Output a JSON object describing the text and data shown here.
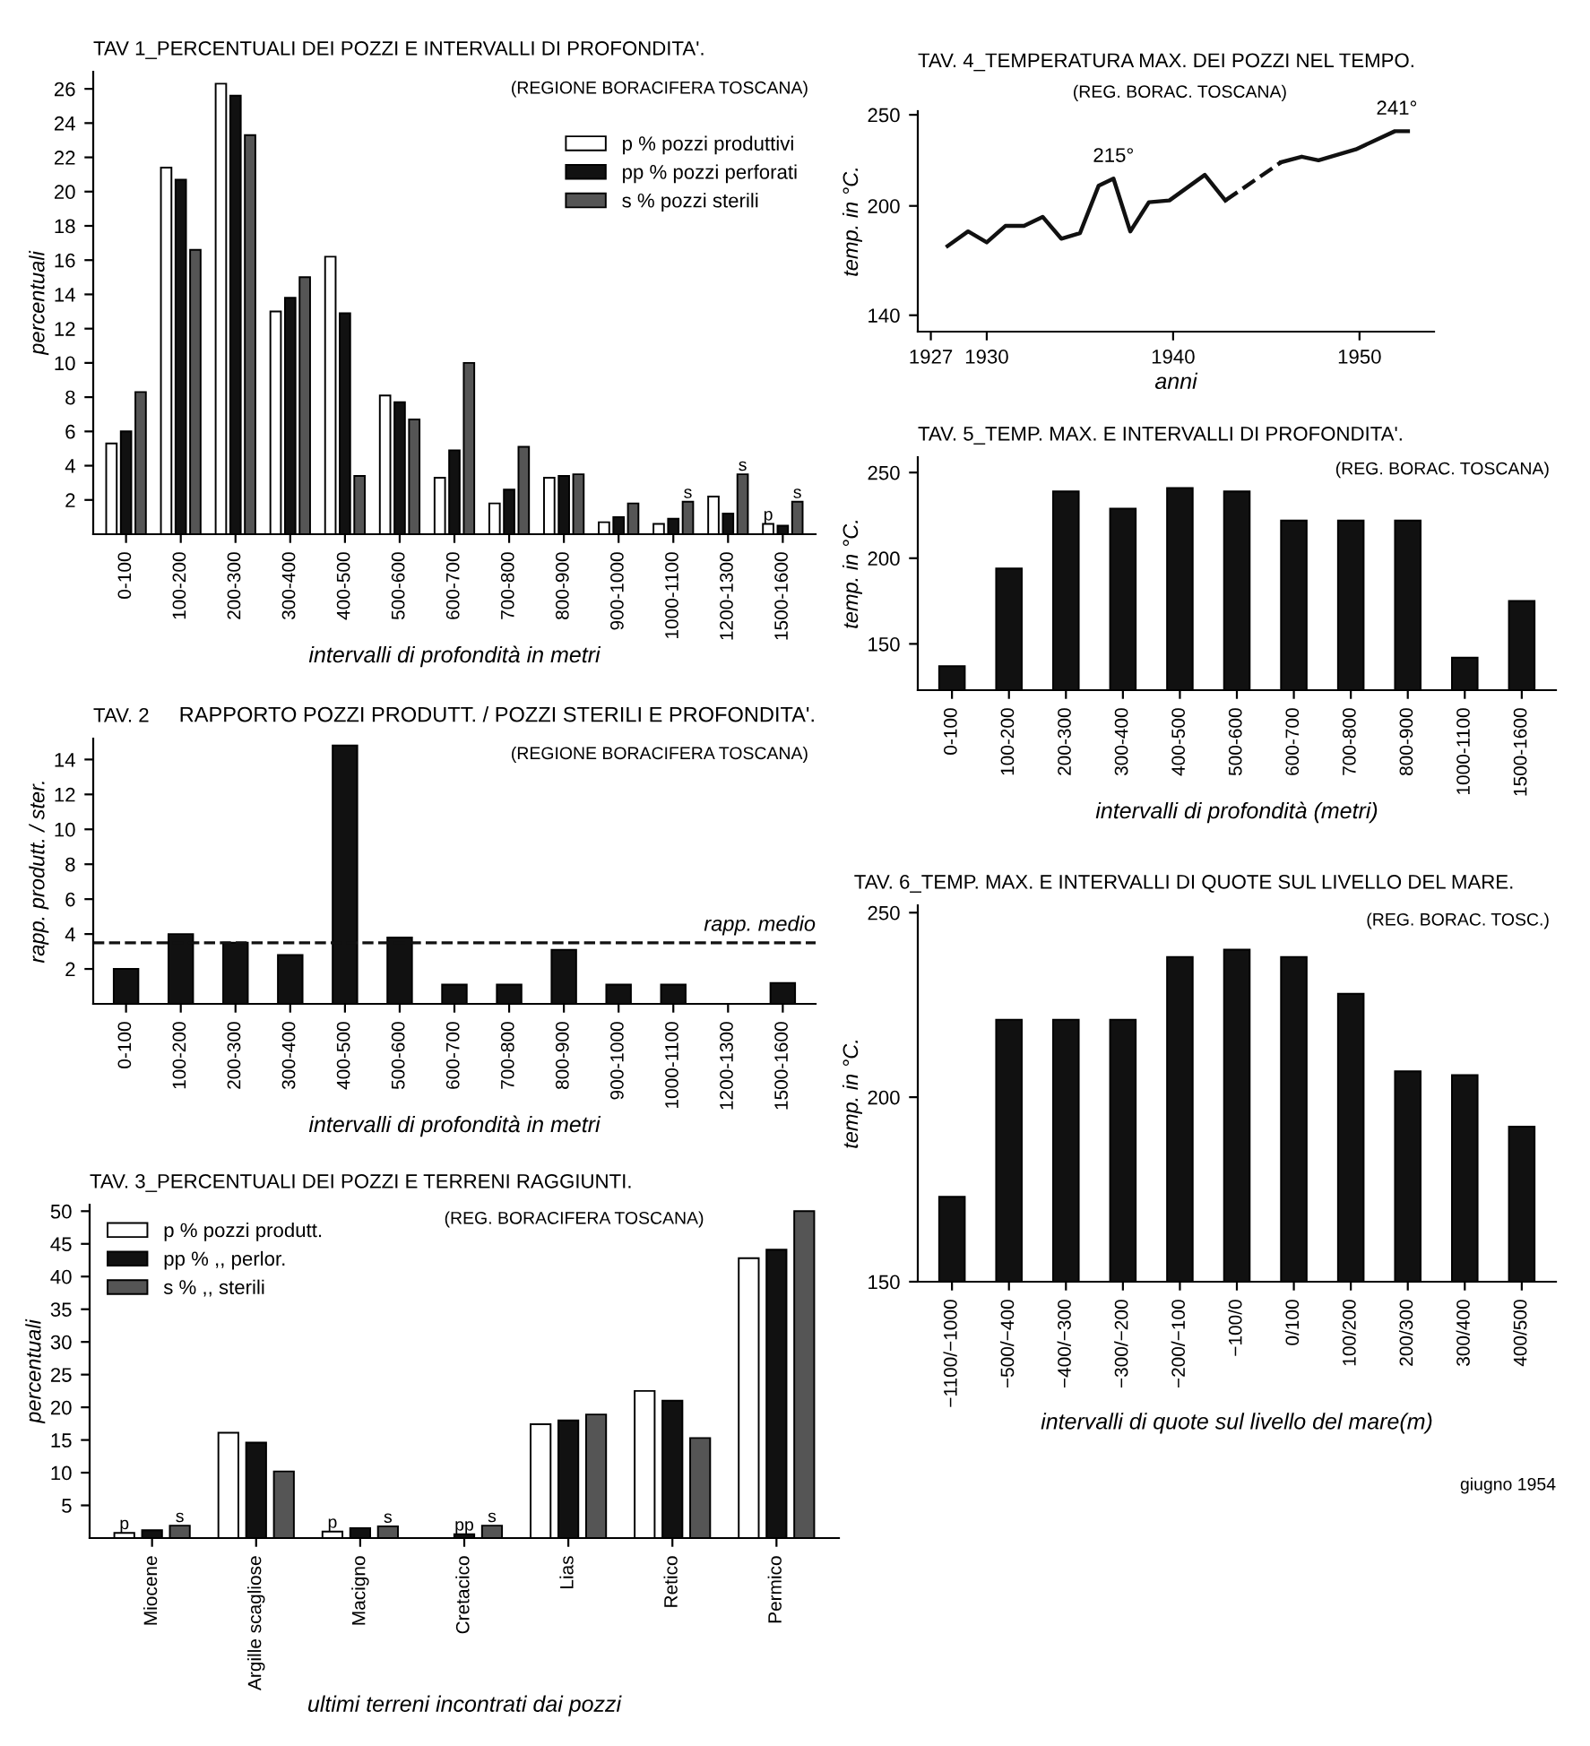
{
  "chart_data": [
    {
      "type": "bar",
      "title": "TAV 1_PERCENTUALI DEI POZZI E INTERVALLI DI PROFONDITA'.",
      "subtitle": "(REGIONE BORACIFERA TOSCANA)",
      "xlabel": "intervalli di profondità in metri",
      "ylabel": "percentuali",
      "categories": [
        "0-100",
        "100-200",
        "200-300",
        "300-400",
        "400-500",
        "500-600",
        "600-700",
        "700-800",
        "800-900",
        "900-1000",
        "1000-1100",
        "1200-1300",
        "1500-1600"
      ],
      "series": [
        {
          "name": "p % pozzi produttivi",
          "color": "#ffffff",
          "values": [
            5.3,
            21.4,
            26.3,
            13.0,
            16.2,
            8.1,
            3.3,
            1.8,
            3.3,
            0.7,
            0.6,
            2.2,
            0.6
          ],
          "value_labels": [
            null,
            null,
            null,
            null,
            null,
            null,
            null,
            null,
            null,
            null,
            null,
            null,
            "p"
          ]
        },
        {
          "name": "pp % pozzi perforati",
          "color": "#111111",
          "values": [
            6.0,
            20.7,
            25.6,
            13.8,
            12.9,
            7.7,
            4.9,
            2.6,
            3.4,
            1.0,
            0.9,
            1.2,
            0.5
          ]
        },
        {
          "name": "s % pozzi sterili",
          "color": "#555555",
          "values": [
            8.3,
            16.6,
            23.3,
            15.0,
            3.4,
            6.7,
            10.0,
            5.1,
            3.5,
            1.8,
            1.9,
            3.5,
            1.9
          ],
          "value_labels": [
            null,
            null,
            null,
            null,
            null,
            null,
            null,
            null,
            null,
            null,
            "s",
            "s",
            "s"
          ]
        }
      ],
      "ylim": [
        0,
        27
      ],
      "yticks": [
        2,
        4,
        6,
        8,
        10,
        12,
        14,
        16,
        18,
        20,
        22,
        24,
        26
      ],
      "legend": "top right"
    },
    {
      "type": "bar",
      "title": "TAV. 2",
      "subtitle": "RAPPORTO POZZI PRODUTT. / POZZI STERILI E PROFONDITA'.",
      "xlabel": "intervalli di profondità in metri",
      "ylabel": "rapp. produtt. / ster.",
      "categories": [
        "0-100",
        "100-200",
        "200-300",
        "300-400",
        "400-500",
        "500-600",
        "600-700",
        "700-800",
        "800-900",
        "900-1000",
        "1000-1100",
        "1200-1300",
        "1500-1600"
      ],
      "values": [
        2.0,
        4.0,
        3.5,
        2.8,
        14.8,
        3.8,
        1.1,
        1.1,
        3.1,
        1.1,
        1.1,
        null,
        1.2
      ],
      "color": "#111111",
      "ylim": [
        0,
        15.2
      ],
      "yticks": [
        2,
        4,
        6,
        8,
        10,
        12,
        14
      ],
      "ref_lines": [
        {
          "axis": "y",
          "value": 3.5,
          "label": "rapp. medio",
          "line_style": "dashed",
          "color": "#111111"
        }
      ],
      "annotations": [
        "(REGIONE BORACIFERA TOSCANA)"
      ]
    },
    {
      "type": "bar",
      "title": "TAV. 3_PERCENTUALI DEI POZZI E TERRENI RAGGIUNTI.",
      "subtitle": "(REG. BORACIFERA TOSCANA)",
      "xlabel": "ultimi terreni incontrati dai pozzi",
      "ylabel": "percentuali",
      "categories": [
        "Miocene",
        "Argille scagliose",
        "Macigno",
        "Cretacico",
        "Lias",
        "Retico",
        "Permico"
      ],
      "series": [
        {
          "name": "p % pozzi produtt.",
          "color": "#ffffff",
          "values": [
            0.8,
            16.1,
            1.0,
            null,
            17.4,
            22.5,
            42.8
          ],
          "value_labels": [
            "p",
            null,
            "p",
            null,
            null,
            null,
            null
          ]
        },
        {
          "name": "pp % ,, perlor.",
          "color": "#111111",
          "values": [
            1.2,
            14.6,
            1.5,
            0.6,
            18.0,
            21.0,
            44.1
          ],
          "value_labels": [
            null,
            null,
            null,
            "pp",
            null,
            null,
            null
          ]
        },
        {
          "name": "s % ,, sterili",
          "color": "#555555",
          "values": [
            1.9,
            10.2,
            1.8,
            1.9,
            18.9,
            15.3,
            50.0
          ],
          "value_labels": [
            "s",
            null,
            "s",
            "s",
            null,
            null,
            null
          ]
        }
      ],
      "ylim": [
        0,
        51
      ],
      "yticks": [
        5,
        10,
        15,
        20,
        25,
        30,
        35,
        40,
        45,
        50
      ],
      "legend": "top left"
    },
    {
      "type": "line",
      "title": "TAV. 4_TEMPERATURA MAX. DEI POZZI NEL TEMPO.",
      "subtitle": "(REG. BORAC. TOSCANA)",
      "xlabel": "anni",
      "ylabel": "temp. in °C.",
      "series": [
        {
          "color": "#111111",
          "line_style": "solid",
          "x": [
            1927.9,
            1929,
            1930,
            1931,
            1932,
            1933,
            1934,
            1935,
            1936,
            1936.8,
            1937.7,
            1938.7,
            1939.8,
            1941.7,
            1942.8
          ],
          "values": [
            178,
            186,
            180,
            189,
            189,
            194,
            182,
            185,
            211,
            215,
            186,
            202,
            203,
            217,
            203
          ]
        },
        {
          "color": "#111111",
          "line_style": "dashed",
          "x": [
            1942.8,
            1945.8
          ],
          "values": [
            203,
            224
          ]
        },
        {
          "color": "#111111",
          "line_style": "solid",
          "x": [
            1945.8,
            1946.9,
            1947.8,
            1949.8,
            1951.9,
            1952.6
          ],
          "values": [
            224,
            227,
            225,
            231,
            241,
            241
          ]
        }
      ],
      "xlim": [
        1926.3,
        1954
      ],
      "xticks": [
        1927,
        1930,
        1940,
        1950
      ],
      "ylim": [
        131,
        252
      ],
      "yticks": [
        140,
        200,
        250
      ],
      "annotations": [
        {
          "text": "215°",
          "x": 1936.8,
          "y": 215
        },
        {
          "text": "241°",
          "x": 1952,
          "y": 241
        }
      ]
    },
    {
      "type": "bar",
      "title": "TAV. 5_TEMP. MAX. E INTERVALLI DI PROFONDITA'.",
      "subtitle": "(REG. BORAC. TOSCANA)",
      "xlabel": "intervalli di profondità (metri)",
      "ylabel": "temp. in °C.",
      "categories": [
        "0-100",
        "100-200",
        "200-300",
        "300-400",
        "400-500",
        "500-600",
        "600-700",
        "700-800",
        "800-900",
        "1000-1100",
        "1500-1600"
      ],
      "values": [
        137,
        194,
        239,
        229,
        241,
        239,
        222,
        222,
        222,
        142,
        175
      ],
      "color": "#111111",
      "ylim": [
        123,
        259
      ],
      "yticks": [
        150,
        200,
        250
      ]
    },
    {
      "type": "bar",
      "title": "TAV. 6_TEMP. MAX. E INTERVALLI DI QUOTE SUL LIVELLO DEL MARE.",
      "subtitle": "(REG. BORAC. TOSC.)",
      "xlabel": "intervalli di quote sul livello del mare(m)",
      "ylabel": "temp. in °C.",
      "categories": [
        "−1100/−1000",
        "−500/−400",
        "−400/−300",
        "−300/−200",
        "−200/−100",
        "−100/0",
        "0/100",
        "100/200",
        "200/300",
        "300/400",
        "400/500"
      ],
      "values": [
        173,
        221,
        221,
        221,
        238,
        240,
        238,
        228,
        207,
        206,
        192
      ],
      "color": "#111111",
      "ylim": [
        150,
        252
      ],
      "yticks": [
        150,
        200,
        250
      ],
      "annotations": [
        "giugno 1954"
      ]
    }
  ]
}
